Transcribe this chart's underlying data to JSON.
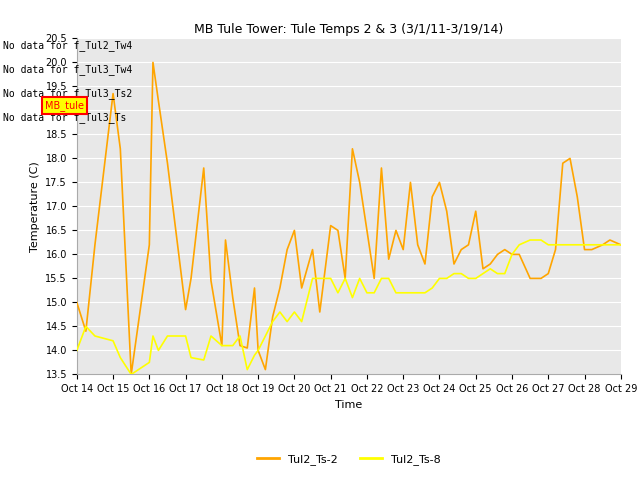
{
  "title": "MB Tule Tower: Tule Temps 2 & 3 (3/1/11-3/19/14)",
  "xlabel": "Time",
  "ylabel": "Temperature (C)",
  "ylim": [
    13.5,
    20.5
  ],
  "xtick_labels": [
    "Oct 14",
    "Oct 15",
    "Oct 16",
    "Oct 17",
    "Oct 18",
    "Oct 19",
    "Oct 20",
    "Oct 21",
    "Oct 22",
    "Oct 23",
    "Oct 24",
    "Oct 25",
    "Oct 26",
    "Oct 27",
    "Oct 28",
    "Oct 29"
  ],
  "ytick_vals": [
    13.5,
    14.0,
    14.5,
    15.0,
    15.5,
    16.0,
    16.5,
    17.0,
    17.5,
    18.0,
    18.5,
    19.0,
    19.5,
    20.0,
    20.5
  ],
  "color_ts2": "#FFA500",
  "color_ts8": "#FFFF00",
  "bg_color": "#E8E8E8",
  "legend_labels": [
    "Tul2_Ts-2",
    "Tul2_Ts-8"
  ],
  "no_data_texts": [
    "No data for f_Tul2_Tw4",
    "No data for f_Tul3_Tw4",
    "No data for f_Tul3_Ts2",
    "No data for f_Tul3_Ts"
  ],
  "tooltip_text": "MB_tule",
  "ts2_x": [
    0,
    0.25,
    0.5,
    1.0,
    1.2,
    1.5,
    2.0,
    2.1,
    2.25,
    2.5,
    3.0,
    3.15,
    3.5,
    3.7,
    4.0,
    4.1,
    4.3,
    4.5,
    4.7,
    4.9,
    5.0,
    5.2,
    5.4,
    5.6,
    5.8,
    6.0,
    6.2,
    6.5,
    6.7,
    7.0,
    7.2,
    7.4,
    7.6,
    7.8,
    8.0,
    8.2,
    8.4,
    8.6,
    8.8,
    9.0,
    9.2,
    9.4,
    9.6,
    9.8,
    10.0,
    10.2,
    10.4,
    10.6,
    10.8,
    11.0,
    11.2,
    11.4,
    11.6,
    11.8,
    12.0,
    12.2,
    12.5,
    12.8,
    13.0,
    13.2,
    13.4,
    13.6,
    13.8,
    14.0,
    14.2,
    14.5,
    14.7,
    15.0
  ],
  "ts2_y": [
    15.0,
    14.4,
    16.2,
    19.35,
    18.2,
    13.5,
    16.2,
    20.0,
    19.2,
    17.9,
    14.85,
    15.5,
    17.8,
    15.45,
    14.1,
    16.3,
    15.1,
    14.1,
    14.05,
    15.3,
    14.0,
    13.6,
    14.7,
    15.3,
    16.1,
    16.5,
    15.3,
    16.1,
    14.8,
    16.6,
    16.5,
    15.5,
    18.2,
    17.5,
    16.5,
    15.5,
    17.8,
    15.9,
    16.5,
    16.1,
    17.5,
    16.2,
    15.8,
    17.2,
    17.5,
    16.9,
    15.8,
    16.1,
    16.2,
    16.9,
    15.7,
    15.8,
    16.0,
    16.1,
    16.0,
    16.0,
    15.5,
    15.5,
    15.6,
    16.1,
    17.9,
    18.0,
    17.2,
    16.1,
    16.1,
    16.2,
    16.3,
    16.2
  ],
  "ts8_x": [
    0,
    0.25,
    0.5,
    1.0,
    1.2,
    1.5,
    2.0,
    2.1,
    2.25,
    2.5,
    3.0,
    3.15,
    3.5,
    3.7,
    4.0,
    4.1,
    4.3,
    4.5,
    4.7,
    4.9,
    5.0,
    5.2,
    5.4,
    5.6,
    5.8,
    6.0,
    6.2,
    6.5,
    6.7,
    7.0,
    7.2,
    7.4,
    7.6,
    7.8,
    8.0,
    8.2,
    8.4,
    8.6,
    8.8,
    9.0,
    9.2,
    9.4,
    9.6,
    9.8,
    10.0,
    10.2,
    10.4,
    10.6,
    10.8,
    11.0,
    11.2,
    11.4,
    11.6,
    11.8,
    12.0,
    12.2,
    12.5,
    12.8,
    13.0,
    13.2,
    13.4,
    13.6,
    13.8,
    14.0,
    14.2,
    14.5,
    14.7,
    15.0
  ],
  "ts8_y": [
    14.0,
    14.5,
    14.3,
    14.2,
    13.85,
    13.5,
    13.75,
    14.3,
    14.0,
    14.3,
    14.3,
    13.85,
    13.8,
    14.3,
    14.1,
    14.1,
    14.1,
    14.3,
    13.6,
    13.9,
    14.0,
    14.3,
    14.6,
    14.8,
    14.6,
    14.8,
    14.6,
    15.5,
    15.5,
    15.5,
    15.2,
    15.5,
    15.1,
    15.5,
    15.2,
    15.2,
    15.5,
    15.5,
    15.2,
    15.2,
    15.2,
    15.2,
    15.2,
    15.3,
    15.5,
    15.5,
    15.6,
    15.6,
    15.5,
    15.5,
    15.6,
    15.7,
    15.6,
    15.6,
    16.0,
    16.2,
    16.3,
    16.3,
    16.2,
    16.2,
    16.2,
    16.2,
    16.2,
    16.2,
    16.2,
    16.2,
    16.2,
    16.2
  ]
}
